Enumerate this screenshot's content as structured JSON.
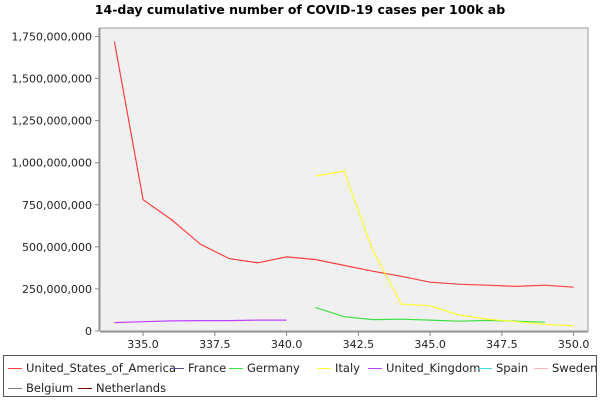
{
  "chart_data": {
    "type": "line",
    "title": "14-day cumulative number of COVID-19 cases per 100k ab",
    "xlabel": "",
    "ylabel": "",
    "xlim": [
      333.5,
      350.5
    ],
    "ylim": [
      0,
      1800000000
    ],
    "x_ticks": [
      "335.0",
      "337.5",
      "340.0",
      "342.5",
      "345.0",
      "347.5",
      "350.0"
    ],
    "x_tick_values": [
      335,
      337.5,
      340,
      342.5,
      345,
      347.5,
      350
    ],
    "y_ticks": [
      "0",
      "250,000,000",
      "500,000,000",
      "750,000,000",
      "1,000,000,000",
      "1,250,000,000",
      "1,500,000,000",
      "1,750,000,000"
    ],
    "y_tick_values": [
      0,
      250000000,
      500000000,
      750000000,
      1000000000,
      1250000000,
      1500000000,
      1750000000
    ],
    "grid": false,
    "legend_position": "bottom",
    "series": [
      {
        "name": "United_States_of_America",
        "color": "#ff4040",
        "x": [
          334,
          335,
          336,
          337,
          338,
          339,
          340,
          341,
          342,
          343,
          344,
          345,
          346,
          347,
          348,
          349,
          350
        ],
        "y": [
          1720000000,
          780000000,
          660000000,
          515000000,
          430000000,
          405000000,
          440000000,
          425000000,
          390000000,
          355000000,
          325000000,
          290000000,
          278000000,
          272000000,
          265000000,
          272000000,
          260000000
        ]
      },
      {
        "name": "France",
        "color": "#5050a0",
        "x": [],
        "y": []
      },
      {
        "name": "Germany",
        "color": "#40e040",
        "x": [
          341,
          342,
          343,
          344,
          345,
          346,
          347,
          348,
          349
        ],
        "y": [
          140000000,
          85000000,
          68000000,
          70000000,
          65000000,
          58000000,
          63000000,
          58000000,
          52000000
        ]
      },
      {
        "name": "Italy",
        "color": "#ffff30",
        "x": [
          341,
          342,
          343,
          344,
          345,
          346,
          347,
          348,
          349,
          350
        ],
        "y": [
          920000000,
          950000000,
          480000000,
          160000000,
          150000000,
          95000000,
          70000000,
          55000000,
          40000000,
          30000000
        ]
      },
      {
        "name": "United_Kingdom",
        "color": "#c040ff",
        "x": [
          334,
          335,
          336,
          337,
          338,
          339,
          340
        ],
        "y": [
          50000000,
          55000000,
          60000000,
          62000000,
          62000000,
          65000000,
          65000000
        ]
      },
      {
        "name": "Spain",
        "color": "#40e0e0",
        "x": [],
        "y": []
      },
      {
        "name": "Sweden",
        "color": "#ffb0b0",
        "x": [],
        "y": []
      },
      {
        "name": "Belgium",
        "color": "#808080",
        "x": [],
        "y": []
      },
      {
        "name": "Netherlands",
        "color": "#800000",
        "x": [],
        "y": []
      }
    ]
  }
}
